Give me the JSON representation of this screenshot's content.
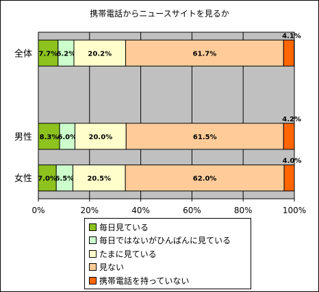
{
  "chart_data": {
    "type": "bar",
    "orientation": "horizontal",
    "stacked": true,
    "percent_stacked": true,
    "title": "携帯電話からニュースサイトを見るか",
    "categories": [
      "全体",
      "",
      "男性",
      "女性"
    ],
    "series": [
      {
        "name": "毎日見ている",
        "color": "#8dc21f",
        "values": [
          7.7,
          null,
          8.3,
          7.0
        ],
        "labels": [
          "7.7%",
          "",
          "8.3%",
          "7.0%"
        ]
      },
      {
        "name": "毎日ではないがひんぱんに見ている",
        "color": "#ccffcc",
        "values": [
          6.2,
          null,
          6.0,
          6.5
        ],
        "labels": [
          "6.2%",
          "",
          "6.0%",
          "6.5%"
        ]
      },
      {
        "name": "たまに見ている",
        "color": "#ffffcc",
        "values": [
          20.2,
          null,
          20.0,
          20.5
        ],
        "labels": [
          "20.2%",
          "",
          "20.0%",
          "20.5%"
        ]
      },
      {
        "name": "見ない",
        "color": "#ffcc99",
        "values": [
          61.7,
          null,
          61.5,
          62.0
        ],
        "labels": [
          "61.7%",
          "",
          "61.5%",
          "62.0%"
        ]
      },
      {
        "name": "携帯電話を持っていない",
        "color": "#ff6600",
        "values": [
          4.1,
          null,
          4.2,
          4.0
        ],
        "labels": [
          "4.1%",
          "",
          "4.2%",
          "4.0%"
        ]
      }
    ],
    "x_ticks": [
      "0%",
      "20%",
      "40%",
      "60%",
      "80%",
      "100%"
    ],
    "xlim": [
      0,
      100
    ],
    "grid": true,
    "plot_background": "#c0c0c0",
    "legend_position": "bottom"
  }
}
